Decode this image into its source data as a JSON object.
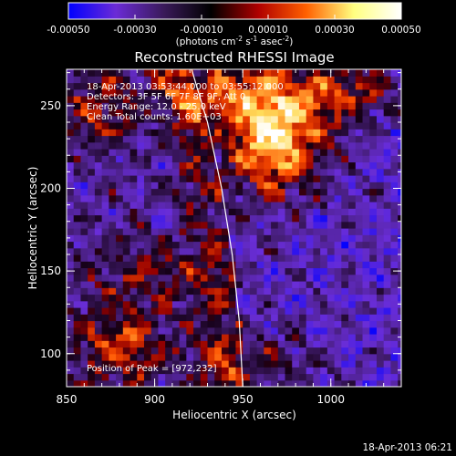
{
  "chart_data": {
    "type": "heatmap",
    "title": "Reconstructed RHESSI Image",
    "xlabel": "Heliocentric X (arcsec)",
    "ylabel": "Heliocentric Y (arcsec)",
    "xlim": [
      850,
      1040
    ],
    "ylim": [
      80,
      272
    ],
    "x_ticks": [
      850,
      900,
      950,
      1000
    ],
    "y_ticks": [
      100,
      150,
      200,
      250
    ],
    "x_minor_step": 10,
    "y_minor_step": 10,
    "colorbar": {
      "range": [
        -0.0005,
        0.0005
      ],
      "tick_values": [
        -0.0005,
        -0.0003,
        -0.0001,
        0.0001,
        0.0003,
        0.0005
      ],
      "tick_labels": [
        "-0.00050",
        "-0.00030",
        "-0.00010",
        "0.00010",
        "0.00030",
        "0.00050"
      ],
      "units_main": "(photons cm",
      "units_exp1": "-2",
      "units_mid": " s",
      "units_exp2": "-1",
      "units_mid2": " asec",
      "units_exp3": "-2",
      "units_end": ")",
      "colors": [
        "#0000ff",
        "#6b2bd6",
        "#3a1a5a",
        "#000000",
        "#b00000",
        "#ff6000",
        "#ffff80",
        "#ffffff"
      ]
    },
    "annotations": {
      "line1": "18-Apr-2013 03:53:44.000 to 03:55:12.000",
      "line2": "Detectors: 3F 5F 6F 7F 8F 9F, Att 0",
      "line3": "Energy Range: 12.0 - 25.0 keV",
      "line4": "Clean     Total counts: 1.60E+03",
      "peak": "Position of Peak = [972,232]"
    },
    "peak": [
      972,
      232
    ],
    "limb_curve": [
      [
        921,
        272
      ],
      [
        930,
        240
      ],
      [
        938,
        200
      ],
      [
        944,
        160
      ],
      [
        948,
        120
      ],
      [
        950,
        80
      ]
    ],
    "sources": [
      {
        "x": 968,
        "y": 232,
        "sx": 20,
        "sy": 26,
        "amp": 1.0
      },
      {
        "x": 935,
        "y": 260,
        "sx": 22,
        "sy": 14,
        "amp": 0.55
      },
      {
        "x": 1010,
        "y": 258,
        "sx": 22,
        "sy": 12,
        "amp": 0.5
      },
      {
        "x": 880,
        "y": 105,
        "sx": 18,
        "sy": 18,
        "amp": 0.5
      },
      {
        "x": 955,
        "y": 95,
        "sx": 24,
        "sy": 14,
        "amp": 0.38
      },
      {
        "x": 900,
        "y": 150,
        "sx": 30,
        "sy": 14,
        "amp": 0.28
      },
      {
        "x": 870,
        "y": 250,
        "sx": 16,
        "sy": 18,
        "amp": 0.4
      }
    ],
    "timestamp": "18-Apr-2013 06:21"
  }
}
